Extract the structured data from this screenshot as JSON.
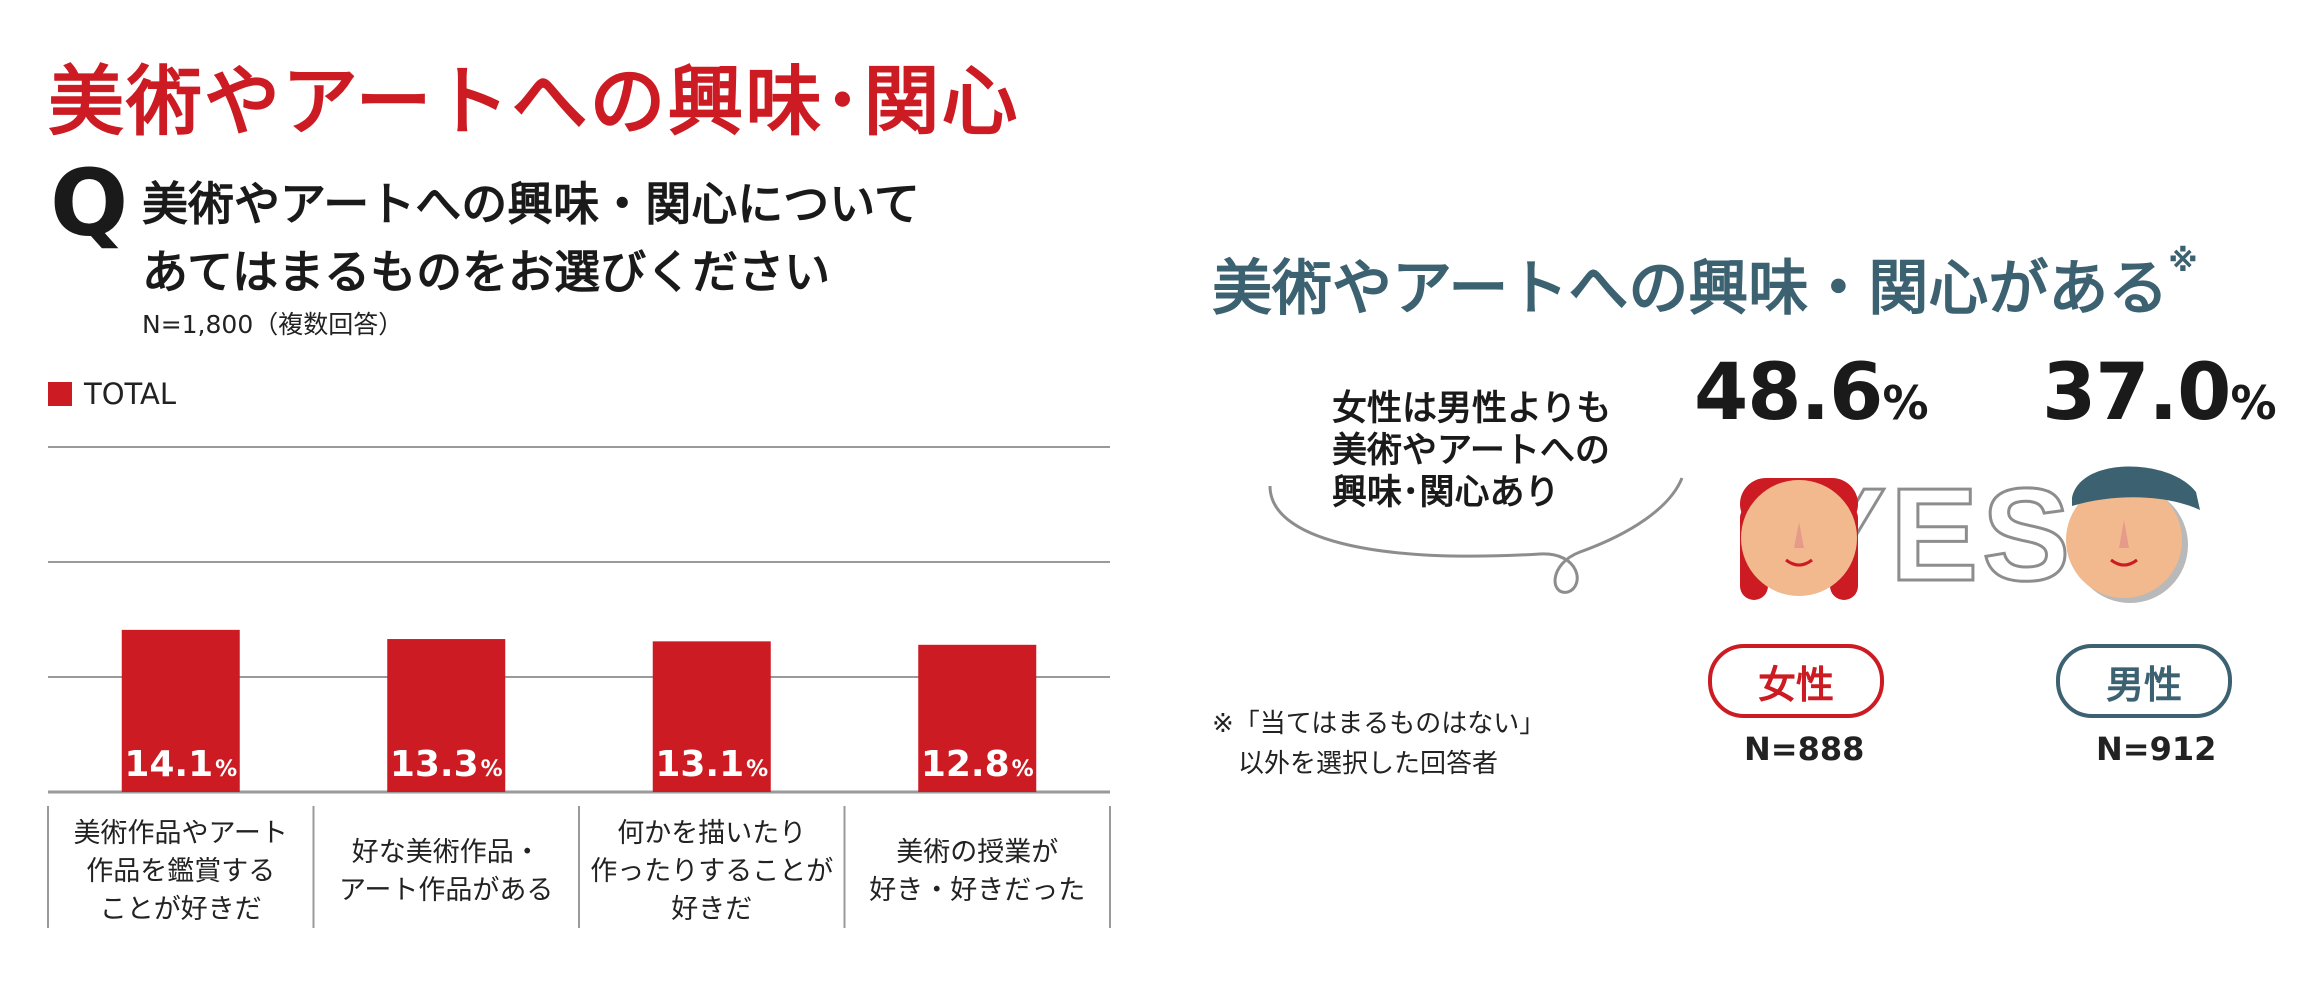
{
  "title": "美術やアートへの興味･関心",
  "question": {
    "mark": "Q",
    "line1": "美術やアートへの興味・関心について",
    "line2": "あてはまるものをお選びください",
    "sample_note": "N=1,800（複数回答）"
  },
  "colors": {
    "accent": "#cc1b22",
    "teal": "#3c6170",
    "gridline": "#9a9a9a",
    "skin": "#f2b98e"
  },
  "chart_data": {
    "type": "bar",
    "legend": [
      "TOTAL"
    ],
    "categories": [
      [
        "美術作品やアート",
        "作品を鑑賞する",
        "ことが好きだ"
      ],
      [
        "好な美術作品・",
        "アート作品がある"
      ],
      [
        "何かを描いたり",
        "作ったりすることが",
        "好きだ"
      ],
      [
        "美術の授業が",
        "好き・好きだった"
      ]
    ],
    "series": [
      {
        "name": "TOTAL",
        "values": [
          14.1,
          13.3,
          13.1,
          12.8
        ]
      }
    ],
    "data_labels": [
      "14.1",
      "13.3",
      "13.1",
      "12.8"
    ],
    "unit": "%",
    "ylim": [
      0,
      30
    ],
    "grid": true
  },
  "comparison": {
    "title": "美術やアートへの興味・関心がある",
    "title_mark": "※",
    "bubble_lines": [
      "女性は男性よりも",
      "美術やアートへの",
      "興味･関心あり"
    ],
    "yes_text": "YES",
    "unit": "%",
    "female": {
      "value": "48.6",
      "label": "女性",
      "n": "N=888"
    },
    "male": {
      "value": "37.0",
      "label": "男性",
      "n": "N=912"
    },
    "footnote_lines": [
      "※「当てはまるものはない」",
      "　以外を選択した回答者"
    ]
  }
}
